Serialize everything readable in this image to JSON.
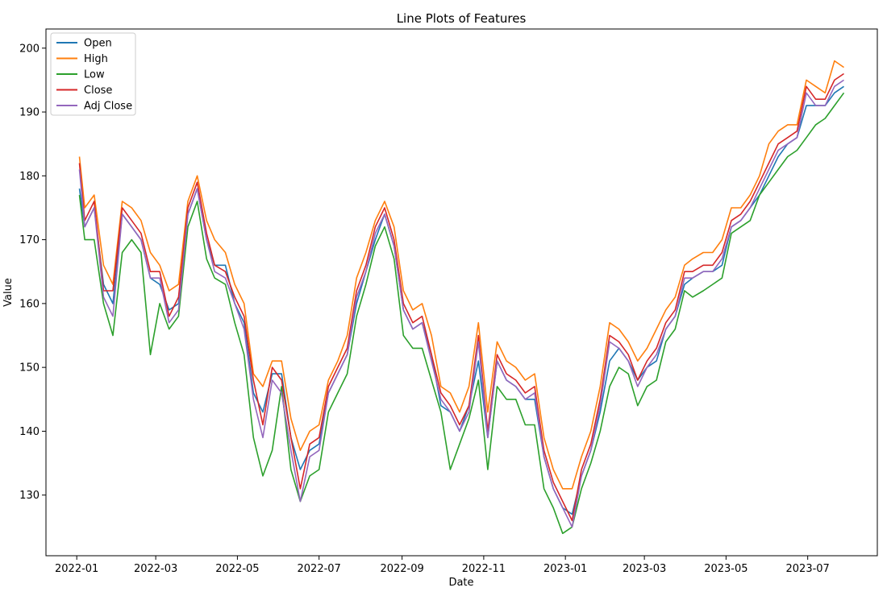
{
  "chart_data": {
    "type": "line",
    "title": "Line Plots of Features",
    "xlabel": "Date",
    "ylabel": "Value",
    "x_type": "date",
    "xlim": [
      "2021-12-09",
      "2023-08-22"
    ],
    "ylim": [
      120.5,
      203.0
    ],
    "x_ticks": [
      "2022-01",
      "2022-03",
      "2022-05",
      "2022-07",
      "2022-09",
      "2022-11",
      "2023-01",
      "2023-03",
      "2023-05",
      "2023-07"
    ],
    "y_ticks": [
      130,
      140,
      150,
      160,
      170,
      180,
      190,
      200
    ],
    "grid": false,
    "legend_position": "top-left",
    "dates": [
      "2022-01-03",
      "2022-01-07",
      "2022-01-14",
      "2022-01-21",
      "2022-01-28",
      "2022-02-04",
      "2022-02-11",
      "2022-02-18",
      "2022-02-25",
      "2022-03-04",
      "2022-03-11",
      "2022-03-18",
      "2022-03-25",
      "2022-04-01",
      "2022-04-08",
      "2022-04-14",
      "2022-04-22",
      "2022-04-29",
      "2022-05-06",
      "2022-05-13",
      "2022-05-20",
      "2022-05-27",
      "2022-06-03",
      "2022-06-10",
      "2022-06-17",
      "2022-06-24",
      "2022-07-01",
      "2022-07-08",
      "2022-07-15",
      "2022-07-22",
      "2022-07-29",
      "2022-08-05",
      "2022-08-12",
      "2022-08-19",
      "2022-08-26",
      "2022-09-02",
      "2022-09-09",
      "2022-09-16",
      "2022-09-23",
      "2022-09-30",
      "2022-10-07",
      "2022-10-14",
      "2022-10-21",
      "2022-10-28",
      "2022-11-04",
      "2022-11-11",
      "2022-11-18",
      "2022-11-25",
      "2022-12-02",
      "2022-12-09",
      "2022-12-16",
      "2022-12-23",
      "2022-12-30",
      "2023-01-06",
      "2023-01-13",
      "2023-01-20",
      "2023-01-27",
      "2023-02-03",
      "2023-02-10",
      "2023-02-17",
      "2023-02-24",
      "2023-03-03",
      "2023-03-10",
      "2023-03-17",
      "2023-03-24",
      "2023-03-31",
      "2023-04-06",
      "2023-04-14",
      "2023-04-21",
      "2023-04-28",
      "2023-05-05",
      "2023-05-12",
      "2023-05-19",
      "2023-05-26",
      "2023-06-02",
      "2023-06-09",
      "2023-06-16",
      "2023-06-23",
      "2023-06-30",
      "2023-07-07",
      "2023-07-14",
      "2023-07-21",
      "2023-07-28"
    ],
    "series": [
      {
        "name": "Open",
        "color": "#1f77b4",
        "values": [
          178,
          172,
          175,
          163,
          160,
          174,
          172,
          170,
          164,
          163,
          159,
          160,
          174,
          178,
          170,
          166,
          166,
          160,
          157,
          146,
          143,
          149,
          149,
          139,
          134,
          137,
          138,
          146,
          149,
          152,
          160,
          165,
          170,
          174,
          169,
          159,
          156,
          157,
          152,
          144,
          143,
          140,
          144,
          151,
          139,
          151,
          148,
          147,
          145,
          145,
          136,
          131,
          128,
          127,
          133,
          137,
          143,
          151,
          153,
          151,
          148,
          150,
          151,
          156,
          158,
          163,
          164,
          165,
          165,
          166,
          172,
          173,
          175,
          177,
          180,
          183,
          185,
          186,
          191,
          191,
          191,
          193,
          194
        ]
      },
      {
        "name": "High",
        "color": "#ff7f0e",
        "values": [
          183,
          175,
          177,
          166,
          163,
          176,
          175,
          173,
          168,
          166,
          162,
          163,
          176,
          180,
          173,
          170,
          168,
          163,
          160,
          149,
          147,
          151,
          151,
          142,
          137,
          140,
          141,
          148,
          151,
          155,
          164,
          168,
          173,
          176,
          172,
          162,
          159,
          160,
          155,
          147,
          146,
          143,
          147,
          157,
          143,
          154,
          151,
          150,
          148,
          149,
          139,
          134,
          131,
          131,
          136,
          140,
          147,
          157,
          156,
          154,
          151,
          153,
          156,
          159,
          161,
          166,
          167,
          168,
          168,
          170,
          175,
          175,
          177,
          180,
          185,
          187,
          188,
          188,
          195,
          194,
          193,
          198,
          197
        ]
      },
      {
        "name": "Low",
        "color": "#2ca02c",
        "values": [
          177,
          170,
          170,
          160,
          155,
          168,
          170,
          168,
          152,
          160,
          156,
          158,
          172,
          176,
          167,
          164,
          163,
          157,
          152,
          139,
          133,
          137,
          147,
          134,
          129,
          133,
          134,
          143,
          146,
          149,
          158,
          163,
          169,
          172,
          167,
          155,
          153,
          153,
          148,
          143,
          134,
          138,
          142,
          148,
          134,
          147,
          145,
          145,
          141,
          141,
          131,
          128,
          124,
          125,
          131,
          135,
          140,
          147,
          150,
          149,
          144,
          147,
          148,
          154,
          156,
          162,
          161,
          162,
          163,
          164,
          171,
          172,
          173,
          177,
          179,
          181,
          183,
          184,
          186,
          188,
          189,
          191,
          193
        ]
      },
      {
        "name": "Close",
        "color": "#d62728",
        "values": [
          182,
          173,
          176,
          162,
          162,
          175,
          173,
          171,
          165,
          165,
          158,
          161,
          175,
          179,
          171,
          166,
          165,
          161,
          158,
          148,
          141,
          150,
          148,
          139,
          131,
          138,
          139,
          147,
          150,
          153,
          162,
          166,
          172,
          175,
          170,
          160,
          157,
          158,
          152,
          146,
          144,
          141,
          144,
          155,
          140,
          152,
          149,
          148,
          146,
          147,
          137,
          132,
          129,
          126,
          134,
          138,
          145,
          155,
          154,
          152,
          148,
          151,
          153,
          157,
          159,
          165,
          165,
          166,
          166,
          168,
          173,
          174,
          176,
          179,
          182,
          185,
          186,
          187,
          194,
          192,
          192,
          195,
          196
        ]
      },
      {
        "name": "Adj Close",
        "color": "#9467bd",
        "values": [
          181,
          172,
          175,
          161,
          158,
          174,
          172,
          170,
          164,
          164,
          157,
          159,
          174,
          178,
          170,
          165,
          164,
          160,
          156,
          145,
          139,
          148,
          146,
          137,
          129,
          136,
          137,
          146,
          149,
          152,
          161,
          165,
          171,
          174,
          169,
          159,
          156,
          157,
          151,
          145,
          143,
          140,
          143,
          154,
          139,
          151,
          148,
          147,
          145,
          146,
          136,
          131,
          128,
          125,
          133,
          137,
          144,
          154,
          153,
          151,
          147,
          150,
          152,
          156,
          158,
          164,
          164,
          165,
          165,
          167,
          172,
          173,
          175,
          178,
          181,
          184,
          185,
          186,
          193,
          191,
          191,
          194,
          195
        ]
      }
    ]
  }
}
